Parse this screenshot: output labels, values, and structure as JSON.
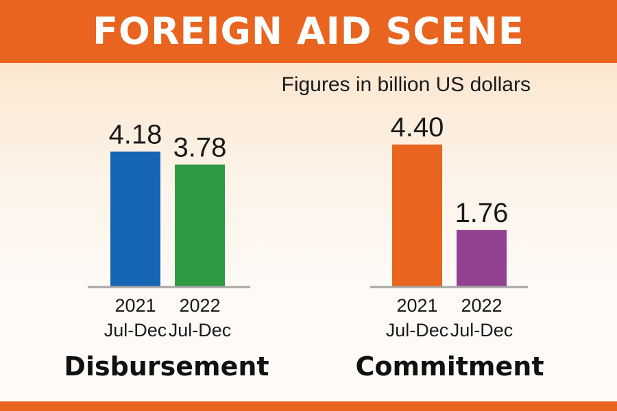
{
  "title": "FOREIGN AID SCENE",
  "subtitle": "Figures in billion US dollars",
  "colors": {
    "banner": "#e8641f",
    "baseline": "#a6a6a6",
    "disbursement_2021": "#1565b4",
    "disbursement_2022": "#2f9a44",
    "commitment_2021": "#e8641f",
    "commitment_2022": "#934191"
  },
  "chart_data": [
    {
      "type": "bar",
      "title": "Disbursement",
      "categories": [
        "2021 Jul-Dec",
        "2022 Jul-Dec"
      ],
      "category_lines": [
        [
          "2021",
          "Jul-Dec"
        ],
        [
          "2022",
          "Jul-Dec"
        ]
      ],
      "values": [
        4.18,
        3.78
      ],
      "value_labels": [
        "4.18",
        "3.78"
      ],
      "colors": [
        "#1565b4",
        "#2f9a44"
      ],
      "unit": "billion US dollars",
      "ylim": [
        0,
        4.4
      ],
      "grid": false
    },
    {
      "type": "bar",
      "title": "Commitment",
      "categories": [
        "2021 Jul-Dec",
        "2022 Jul-Dec"
      ],
      "category_lines": [
        [
          "2021",
          "Jul-Dec"
        ],
        [
          "2022",
          "Jul-Dec"
        ]
      ],
      "values": [
        4.4,
        1.76
      ],
      "value_labels": [
        "4.40",
        "1.76"
      ],
      "colors": [
        "#e8641f",
        "#934191"
      ],
      "unit": "billion US dollars",
      "ylim": [
        0,
        4.4
      ],
      "grid": false
    }
  ]
}
